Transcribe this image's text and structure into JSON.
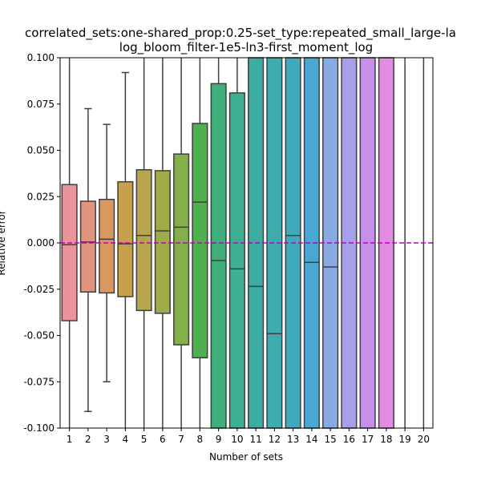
{
  "chart_data": {
    "type": "box",
    "title_line1": "correlated_sets:one-shared_prop:0.25-set_type:repeated_small_large-la",
    "title_line2": "log_bloom_filter-1e5-ln3-first_moment_log",
    "xlabel": "Number of sets",
    "ylabel": "Relative error",
    "ylim": [
      -0.1,
      0.1
    ],
    "yticks": [
      "-0.100",
      "-0.075",
      "-0.050",
      "-0.025",
      "0.000",
      "0.025",
      "0.050",
      "0.075",
      "0.100"
    ],
    "categories": [
      "1",
      "2",
      "3",
      "4",
      "5",
      "6",
      "7",
      "8",
      "9",
      "10",
      "11",
      "12",
      "13",
      "14",
      "15",
      "16",
      "17",
      "18",
      "19",
      "20"
    ],
    "reference_line": {
      "y": 0.0,
      "color": "#bf00bf",
      "style": "dashed"
    },
    "boxes": [
      {
        "q1": -0.042,
        "median": -0.001,
        "q3": 0.0315,
        "whisker_low": -0.1,
        "whisker_high": 0.1,
        "color": "#e8949a"
      },
      {
        "q1": -0.0265,
        "median": 0.0005,
        "q3": 0.0225,
        "whisker_low": -0.091,
        "whisker_high": 0.0725,
        "color": "#e2957e"
      },
      {
        "q1": -0.027,
        "median": 0.002,
        "q3": 0.0235,
        "whisker_low": -0.075,
        "whisker_high": 0.064,
        "color": "#d9985f"
      },
      {
        "q1": -0.029,
        "median": -0.0005,
        "q3": 0.033,
        "whisker_low": -0.1,
        "whisker_high": 0.092,
        "color": "#c8a04b"
      },
      {
        "q1": -0.0365,
        "median": 0.004,
        "q3": 0.0395,
        "whisker_low": -0.1,
        "whisker_high": 0.1,
        "color": "#b6a54a"
      },
      {
        "q1": -0.038,
        "median": 0.0065,
        "q3": 0.039,
        "whisker_low": -0.1,
        "whisker_high": 0.1,
        "color": "#a1aa49"
      },
      {
        "q1": -0.055,
        "median": 0.0085,
        "q3": 0.048,
        "whisker_low": -0.1,
        "whisker_high": 0.1,
        "color": "#84af4b"
      },
      {
        "q1": -0.062,
        "median": 0.022,
        "q3": 0.0645,
        "whisker_low": -0.1,
        "whisker_high": 0.1,
        "color": "#4fb14e"
      },
      {
        "q1": -0.1,
        "median": -0.0095,
        "q3": 0.086,
        "whisker_low": -0.1,
        "whisker_high": 0.1,
        "color": "#3fae7a"
      },
      {
        "q1": -0.1,
        "median": -0.014,
        "q3": 0.081,
        "whisker_low": -0.1,
        "whisker_high": 0.1,
        "color": "#3daf93"
      },
      {
        "q1": -0.1,
        "median": -0.0235,
        "q3": 0.1,
        "whisker_low": -0.1,
        "whisker_high": 0.1,
        "color": "#3dada3"
      },
      {
        "q1": -0.1,
        "median": -0.049,
        "q3": 0.1,
        "whisker_low": -0.1,
        "whisker_high": 0.1,
        "color": "#3eacaf"
      },
      {
        "q1": -0.1,
        "median": 0.004,
        "q3": 0.1,
        "whisker_low": -0.1,
        "whisker_high": 0.1,
        "color": "#40aabd"
      },
      {
        "q1": -0.1,
        "median": -0.0105,
        "q3": 0.1,
        "whisker_low": -0.1,
        "whisker_high": 0.1,
        "color": "#49a7d4"
      },
      {
        "q1": -0.1,
        "median": -0.013,
        "q3": 0.1,
        "whisker_low": -0.1,
        "whisker_high": 0.1,
        "color": "#8aaae4"
      },
      {
        "q1": -0.1,
        "median": null,
        "q3": 0.1,
        "whisker_low": -0.1,
        "whisker_high": 0.1,
        "color": "#a5a0ea"
      },
      {
        "q1": -0.1,
        "median": null,
        "q3": 0.1,
        "whisker_low": -0.1,
        "whisker_high": 0.1,
        "color": "#c591e8"
      },
      {
        "q1": -0.1,
        "median": null,
        "q3": 0.1,
        "whisker_low": -0.1,
        "whisker_high": 0.1,
        "color": "#e38be0"
      },
      {
        "q1": null,
        "median": null,
        "q3": null,
        "whisker_low": -0.1,
        "whisker_high": 0.1,
        "color": "#e78ac5"
      },
      {
        "q1": null,
        "median": null,
        "q3": null,
        "whisker_low": -0.1,
        "whisker_high": 0.1,
        "color": "#e88fb0"
      }
    ]
  }
}
